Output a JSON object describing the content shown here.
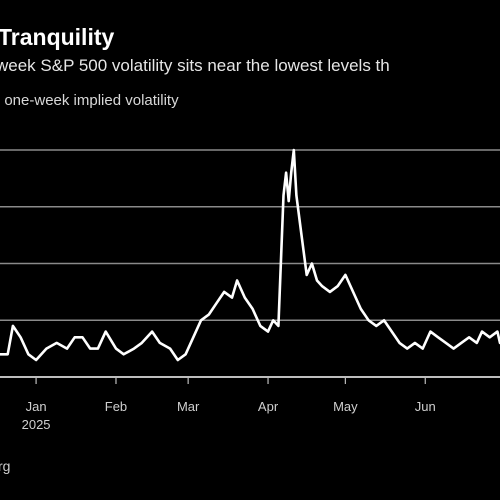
{
  "title": "Tranquility",
  "subtitle": "week S&P 500 volatility sits near the lowest levels th",
  "legend_text": ": one-week implied volatility",
  "source": "rg",
  "chart_data": {
    "type": "line",
    "title": "Tranquility",
    "subtitle": "week S&P 500 volatility sits near the lowest levels th",
    "xlabel": "",
    "ylabel": "",
    "x_tick_labels": [
      {
        "label": "Jan",
        "sub": "2025",
        "x": "2025-01-01"
      },
      {
        "label": "Feb",
        "sub": "",
        "x": "2025-02-01"
      },
      {
        "label": "Mar",
        "sub": "",
        "x": "2025-03-01"
      },
      {
        "label": "Apr",
        "sub": "",
        "x": "2025-04-01"
      },
      {
        "label": "May",
        "sub": "",
        "x": "2025-05-01"
      },
      {
        "label": "Jun",
        "sub": "",
        "x": "2025-06-01"
      }
    ],
    "xlim": [
      "2024-12-18",
      "2025-06-30"
    ],
    "ylim": [
      10,
      50
    ],
    "gridlines_y": [
      10,
      20,
      30,
      40,
      50
    ],
    "grid": true,
    "legend": "top-left",
    "series": [
      {
        "name": "one-week implied volatility",
        "color": "#ffffff",
        "points": [
          [
            "2024-12-18",
            14
          ],
          [
            "2024-12-21",
            14
          ],
          [
            "2024-12-23",
            19
          ],
          [
            "2024-12-26",
            17
          ],
          [
            "2024-12-29",
            14
          ],
          [
            "2025-01-01",
            13
          ],
          [
            "2025-01-05",
            15
          ],
          [
            "2025-01-09",
            16
          ],
          [
            "2025-01-13",
            15
          ],
          [
            "2025-01-16",
            17
          ],
          [
            "2025-01-19",
            17
          ],
          [
            "2025-01-22",
            15
          ],
          [
            "2025-01-25",
            15
          ],
          [
            "2025-01-28",
            18
          ],
          [
            "2025-02-01",
            15
          ],
          [
            "2025-02-04",
            14
          ],
          [
            "2025-02-08",
            15
          ],
          [
            "2025-02-11",
            16
          ],
          [
            "2025-02-15",
            18
          ],
          [
            "2025-02-18",
            16
          ],
          [
            "2025-02-22",
            15
          ],
          [
            "2025-02-25",
            13
          ],
          [
            "2025-02-28",
            14
          ],
          [
            "2025-03-03",
            17
          ],
          [
            "2025-03-06",
            20
          ],
          [
            "2025-03-09",
            21
          ],
          [
            "2025-03-12",
            23
          ],
          [
            "2025-03-15",
            25
          ],
          [
            "2025-03-18",
            24
          ],
          [
            "2025-03-20",
            27
          ],
          [
            "2025-03-23",
            24
          ],
          [
            "2025-03-26",
            22
          ],
          [
            "2025-03-29",
            19
          ],
          [
            "2025-04-01",
            18
          ],
          [
            "2025-04-03",
            20
          ],
          [
            "2025-04-05",
            19
          ],
          [
            "2025-04-07",
            42
          ],
          [
            "2025-04-08",
            46
          ],
          [
            "2025-04-09",
            41
          ],
          [
            "2025-04-10",
            46
          ],
          [
            "2025-04-11",
            50
          ],
          [
            "2025-04-12",
            42
          ],
          [
            "2025-04-14",
            35
          ],
          [
            "2025-04-16",
            28
          ],
          [
            "2025-04-18",
            30
          ],
          [
            "2025-04-20",
            27
          ],
          [
            "2025-04-22",
            26
          ],
          [
            "2025-04-25",
            25
          ],
          [
            "2025-04-28",
            26
          ],
          [
            "2025-05-01",
            28
          ],
          [
            "2025-05-04",
            25
          ],
          [
            "2025-05-07",
            22
          ],
          [
            "2025-05-10",
            20
          ],
          [
            "2025-05-13",
            19
          ],
          [
            "2025-05-16",
            20
          ],
          [
            "2025-05-19",
            18
          ],
          [
            "2025-05-22",
            16
          ],
          [
            "2025-05-25",
            15
          ],
          [
            "2025-05-28",
            16
          ],
          [
            "2025-05-31",
            15
          ],
          [
            "2025-06-03",
            18
          ],
          [
            "2025-06-06",
            17
          ],
          [
            "2025-06-09",
            16
          ],
          [
            "2025-06-12",
            15
          ],
          [
            "2025-06-15",
            16
          ],
          [
            "2025-06-18",
            17
          ],
          [
            "2025-06-21",
            16
          ],
          [
            "2025-06-23",
            18
          ],
          [
            "2025-06-26",
            17
          ],
          [
            "2025-06-29",
            18
          ],
          [
            "2025-06-30",
            16
          ]
        ]
      }
    ]
  }
}
